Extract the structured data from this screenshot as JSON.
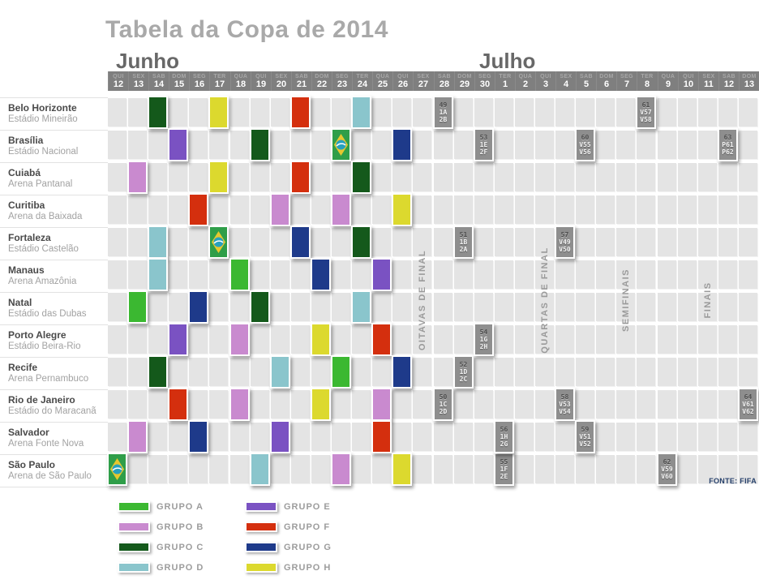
{
  "chart_data": {
    "type": "table",
    "title": "Tabela da Copa de 2014",
    "months": [
      "Junho",
      "Julho"
    ],
    "columns": [
      {
        "day": "QUI",
        "date": "12"
      },
      {
        "day": "SEX",
        "date": "13"
      },
      {
        "day": "SAB",
        "date": "14"
      },
      {
        "day": "DOM",
        "date": "15"
      },
      {
        "day": "SEG",
        "date": "16"
      },
      {
        "day": "TER",
        "date": "17"
      },
      {
        "day": "QUA",
        "date": "18"
      },
      {
        "day": "QUI",
        "date": "19"
      },
      {
        "day": "SEX",
        "date": "20"
      },
      {
        "day": "SAB",
        "date": "21"
      },
      {
        "day": "DOM",
        "date": "22"
      },
      {
        "day": "SEG",
        "date": "23"
      },
      {
        "day": "TER",
        "date": "24"
      },
      {
        "day": "QUA",
        "date": "25"
      },
      {
        "day": "QUI",
        "date": "26"
      },
      {
        "day": "SEX",
        "date": "27"
      },
      {
        "day": "SAB",
        "date": "28"
      },
      {
        "day": "DOM",
        "date": "29"
      },
      {
        "day": "SEG",
        "date": "30"
      },
      {
        "day": "TER",
        "date": "1"
      },
      {
        "day": "QUA",
        "date": "2"
      },
      {
        "day": "QUI",
        "date": "3"
      },
      {
        "day": "SEX",
        "date": "4"
      },
      {
        "day": "SAB",
        "date": "5"
      },
      {
        "day": "DOM",
        "date": "6"
      },
      {
        "day": "SEG",
        "date": "7"
      },
      {
        "day": "TER",
        "date": "8"
      },
      {
        "day": "QUA",
        "date": "9"
      },
      {
        "day": "QUI",
        "date": "10"
      },
      {
        "day": "SEX",
        "date": "11"
      },
      {
        "day": "SAB",
        "date": "12"
      },
      {
        "day": "DOM",
        "date": "13"
      }
    ],
    "venues": [
      {
        "city": "Belo Horizonte",
        "stadium": "Estádio Mineirão"
      },
      {
        "city": "Brasília",
        "stadium": "Estádio Nacional"
      },
      {
        "city": "Cuiabá",
        "stadium": "Arena Pantanal"
      },
      {
        "city": "Curitiba",
        "stadium": "Arena da Baixada"
      },
      {
        "city": "Fortaleza",
        "stadium": "Estádio Castelão"
      },
      {
        "city": "Manaus",
        "stadium": "Arena Amazônia"
      },
      {
        "city": "Natal",
        "stadium": "Estádio das Dubas"
      },
      {
        "city": "Porto Alegre",
        "stadium": "Estádio Beira-Rio"
      },
      {
        "city": "Recife",
        "stadium": "Arena Pernambuco"
      },
      {
        "city": "Rio de Janeiro",
        "stadium": "Estádio do Maracanã"
      },
      {
        "city": "Salvador",
        "stadium": "Arena Fonte Nova"
      },
      {
        "city": "São Paulo",
        "stadium": "Arena de São Paulo"
      }
    ],
    "groups": [
      {
        "id": "A",
        "label": "GRUPO A",
        "color": "#3bb831"
      },
      {
        "id": "B",
        "label": "GRUPO B",
        "color": "#c98acf"
      },
      {
        "id": "C",
        "label": "GRUPO C",
        "color": "#14591b"
      },
      {
        "id": "D",
        "label": "GRUPO D",
        "color": "#8ac5cc"
      },
      {
        "id": "E",
        "label": "GRUPO E",
        "color": "#7a52c2"
      },
      {
        "id": "F",
        "label": "GRUPO F",
        "color": "#d42f0e"
      },
      {
        "id": "G",
        "label": "GRUPO G",
        "color": "#1e3a8a"
      },
      {
        "id": "H",
        "label": "GRUPO H",
        "color": "#dcd92e"
      }
    ],
    "group_stage_matches": [
      {
        "venue": 0,
        "col": 2,
        "group": "C"
      },
      {
        "venue": 0,
        "col": 5,
        "group": "H"
      },
      {
        "venue": 0,
        "col": 9,
        "group": "F"
      },
      {
        "venue": 0,
        "col": 12,
        "group": "D"
      },
      {
        "venue": 1,
        "col": 3,
        "group": "E"
      },
      {
        "venue": 1,
        "col": 7,
        "group": "C"
      },
      {
        "venue": 1,
        "col": 11,
        "group": "A",
        "flag": true
      },
      {
        "venue": 1,
        "col": 14,
        "group": "G"
      },
      {
        "venue": 2,
        "col": 1,
        "group": "B"
      },
      {
        "venue": 2,
        "col": 5,
        "group": "H"
      },
      {
        "venue": 2,
        "col": 9,
        "group": "F"
      },
      {
        "venue": 2,
        "col": 12,
        "group": "C"
      },
      {
        "venue": 3,
        "col": 4,
        "group": "F"
      },
      {
        "venue": 3,
        "col": 8,
        "group": "B"
      },
      {
        "venue": 3,
        "col": 11,
        "group": "B"
      },
      {
        "venue": 3,
        "col": 14,
        "group": "H"
      },
      {
        "venue": 4,
        "col": 2,
        "group": "D"
      },
      {
        "venue": 4,
        "col": 5,
        "group": "A",
        "flag": true
      },
      {
        "venue": 4,
        "col": 9,
        "group": "G"
      },
      {
        "venue": 4,
        "col": 12,
        "group": "C"
      },
      {
        "venue": 5,
        "col": 2,
        "group": "D"
      },
      {
        "venue": 5,
        "col": 6,
        "group": "A"
      },
      {
        "venue": 5,
        "col": 10,
        "group": "G"
      },
      {
        "venue": 5,
        "col": 13,
        "group": "E"
      },
      {
        "venue": 6,
        "col": 1,
        "group": "A"
      },
      {
        "venue": 6,
        "col": 4,
        "group": "G"
      },
      {
        "venue": 6,
        "col": 7,
        "group": "C"
      },
      {
        "venue": 6,
        "col": 12,
        "group": "D"
      },
      {
        "venue": 7,
        "col": 3,
        "group": "E"
      },
      {
        "venue": 7,
        "col": 6,
        "group": "B"
      },
      {
        "venue": 7,
        "col": 10,
        "group": "H"
      },
      {
        "venue": 7,
        "col": 13,
        "group": "F"
      },
      {
        "venue": 8,
        "col": 2,
        "group": "C"
      },
      {
        "venue": 8,
        "col": 8,
        "group": "D"
      },
      {
        "venue": 8,
        "col": 11,
        "group": "A"
      },
      {
        "venue": 8,
        "col": 14,
        "group": "G"
      },
      {
        "venue": 9,
        "col": 3,
        "group": "F"
      },
      {
        "venue": 9,
        "col": 6,
        "group": "B"
      },
      {
        "venue": 9,
        "col": 10,
        "group": "H"
      },
      {
        "venue": 9,
        "col": 13,
        "group": "B"
      },
      {
        "venue": 10,
        "col": 1,
        "group": "B"
      },
      {
        "venue": 10,
        "col": 4,
        "group": "G"
      },
      {
        "venue": 10,
        "col": 8,
        "group": "E"
      },
      {
        "venue": 10,
        "col": 13,
        "group": "F"
      },
      {
        "venue": 11,
        "col": 0,
        "group": "A",
        "flag": true
      },
      {
        "venue": 11,
        "col": 7,
        "group": "D"
      },
      {
        "venue": 11,
        "col": 11,
        "group": "B"
      },
      {
        "venue": 11,
        "col": 14,
        "group": "H"
      }
    ],
    "knockout_matches": [
      {
        "venue": 0,
        "col": 16,
        "match": "49",
        "home": "1A",
        "away": "2B"
      },
      {
        "venue": 9,
        "col": 16,
        "match": "50",
        "home": "1C",
        "away": "2D"
      },
      {
        "venue": 4,
        "col": 17,
        "match": "51",
        "home": "1B",
        "away": "2A"
      },
      {
        "venue": 8,
        "col": 17,
        "match": "52",
        "home": "1D",
        "away": "2C"
      },
      {
        "venue": 1,
        "col": 18,
        "match": "53",
        "home": "1E",
        "away": "2F"
      },
      {
        "venue": 7,
        "col": 18,
        "match": "54",
        "home": "1G",
        "away": "2H"
      },
      {
        "venue": 11,
        "col": 19,
        "match": "55",
        "home": "1F",
        "away": "2E"
      },
      {
        "venue": 10,
        "col": 19,
        "match": "56",
        "home": "1H",
        "away": "2G"
      },
      {
        "venue": 4,
        "col": 22,
        "match": "57",
        "home": "V49",
        "away": "V50"
      },
      {
        "venue": 9,
        "col": 22,
        "match": "58",
        "home": "V53",
        "away": "V54"
      },
      {
        "venue": 10,
        "col": 23,
        "match": "59",
        "home": "V51",
        "away": "V52"
      },
      {
        "venue": 1,
        "col": 23,
        "match": "60",
        "home": "V55",
        "away": "V56"
      },
      {
        "venue": 0,
        "col": 26,
        "match": "61",
        "home": "V57",
        "away": "V58"
      },
      {
        "venue": 11,
        "col": 27,
        "match": "62",
        "home": "V59",
        "away": "V60"
      },
      {
        "venue": 1,
        "col": 30,
        "match": "63",
        "home": "P61",
        "away": "P62"
      },
      {
        "venue": 9,
        "col": 31,
        "match": "64",
        "home": "V61",
        "away": "V62"
      }
    ],
    "stage_labels": [
      {
        "label": "OITAVAS DE FINAL",
        "col": 15
      },
      {
        "label": "QUARTAS DE FINAL",
        "col": 21
      },
      {
        "label": "SEMIFINAIS",
        "col": 25
      },
      {
        "label": "FINAIS",
        "col": 29
      }
    ],
    "source": {
      "label": "FONTE:",
      "value": "FIFA"
    }
  }
}
